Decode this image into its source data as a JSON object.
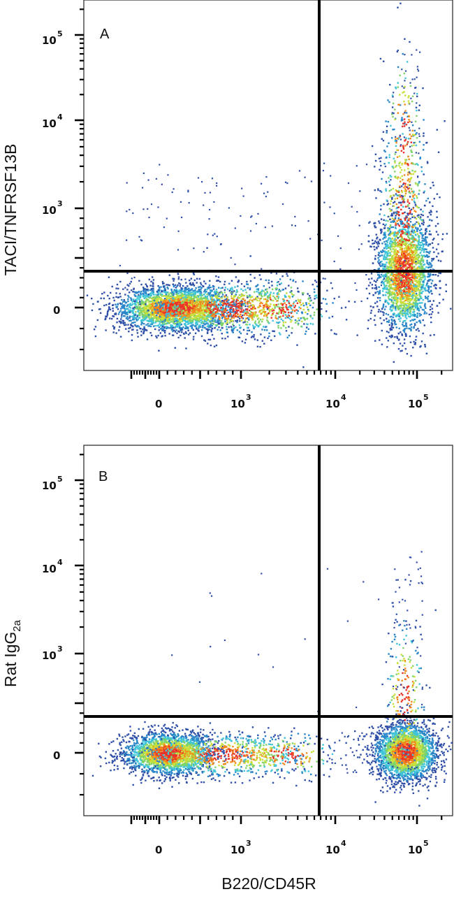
{
  "chart_data": [
    {
      "type": "scatter",
      "panel_label": "A",
      "ylabel": "TACI/TNFRSF13B",
      "xlabel": "B220/CD45R",
      "x_scale": "biexponential",
      "y_scale": "biexponential",
      "x_ticks": [
        {
          "value": 0,
          "base": "0",
          "exp": ""
        },
        {
          "value": 1000,
          "base": "10",
          "exp": "3"
        },
        {
          "value": 10000,
          "base": "10",
          "exp": "4"
        },
        {
          "value": 100000,
          "base": "10",
          "exp": "5"
        }
      ],
      "y_ticks": [
        {
          "value": 0,
          "base": "0",
          "exp": ""
        },
        {
          "value": 1000,
          "base": "10",
          "exp": "3"
        },
        {
          "value": 10000,
          "base": "10",
          "exp": "4"
        },
        {
          "value": 100000,
          "base": "10",
          "exp": "5"
        }
      ],
      "quadrant_gate": {
        "x": 7000,
        "y": 250
      },
      "populations": [
        {
          "name": "B220- TACI-",
          "x_center": 50,
          "y_center": 0,
          "density": "high"
        },
        {
          "name": "B220+ TACI+",
          "x_center": 65000,
          "y_center": 300,
          "density": "high"
        }
      ],
      "grid": false
    },
    {
      "type": "scatter",
      "panel_label": "B",
      "ylabel_main": "Rat IgG",
      "ylabel_sub": "2a",
      "xlabel": "B220/CD45R",
      "x_scale": "biexponential",
      "y_scale": "biexponential",
      "x_ticks": [
        {
          "value": 0,
          "base": "0",
          "exp": ""
        },
        {
          "value": 1000,
          "base": "10",
          "exp": "3"
        },
        {
          "value": 10000,
          "base": "10",
          "exp": "4"
        },
        {
          "value": 100000,
          "base": "10",
          "exp": "5"
        }
      ],
      "y_ticks": [
        {
          "value": 0,
          "base": "0",
          "exp": ""
        },
        {
          "value": 1000,
          "base": "10",
          "exp": "3"
        },
        {
          "value": 10000,
          "base": "10",
          "exp": "4"
        },
        {
          "value": 100000,
          "base": "10",
          "exp": "5"
        }
      ],
      "quadrant_gate": {
        "x": 7000,
        "y": 250
      },
      "populations": [
        {
          "name": "B220- isotype",
          "x_center": 50,
          "y_center": 0,
          "density": "high"
        },
        {
          "name": "B220+ isotype",
          "x_center": 65000,
          "y_center": 0,
          "density": "high"
        }
      ],
      "grid": false
    }
  ],
  "colors": {
    "density_low": "#2f4fa8",
    "density_mid": "#3fc4d8",
    "density_midhigh": "#c9df3a",
    "density_high": "#e8322a",
    "gate_line": "#000000"
  }
}
